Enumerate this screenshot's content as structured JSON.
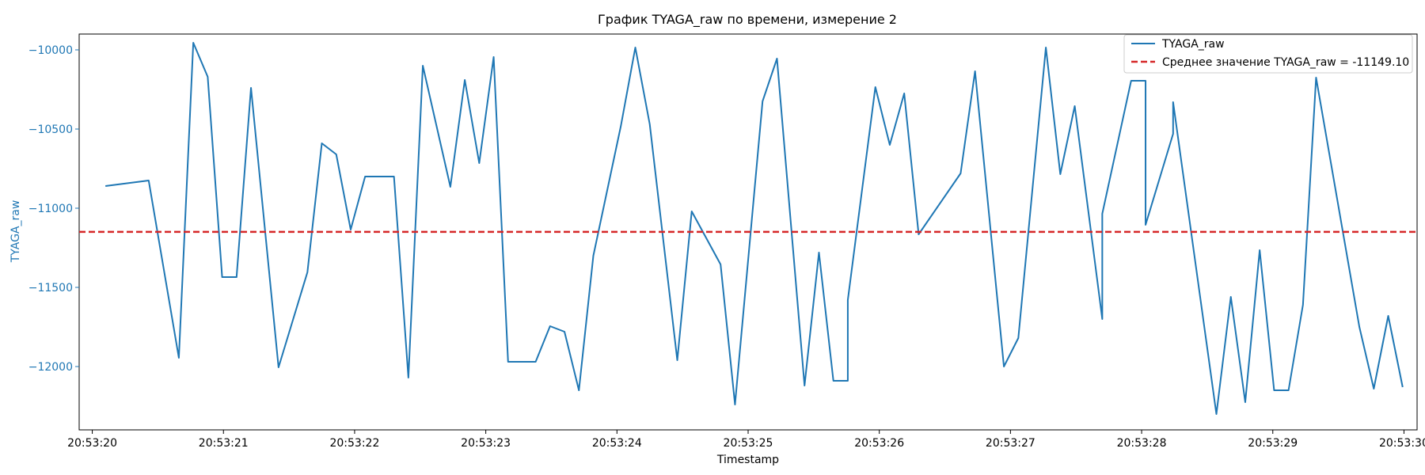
{
  "chart_data": {
    "type": "line",
    "title": "График TYAGA_raw по времени, измерение 2",
    "xlabel": "Timestamp",
    "ylabel": "TYAGA_raw",
    "xlim": [
      "20:53:19.90",
      "20:53:30.10"
    ],
    "ylim": [
      -12400,
      -9900
    ],
    "xticks": [
      "20:53:20",
      "20:53:21",
      "20:53:22",
      "20:53:23",
      "20:53:24",
      "20:53:25",
      "20:53:26",
      "20:53:27",
      "20:53:28",
      "20:53:29",
      "20:53:30"
    ],
    "yticks": [
      -10000,
      -10500,
      -11000,
      -11500,
      -12000
    ],
    "grid": false,
    "legend_position": "top-right",
    "colors": {
      "series": "#1f77b4",
      "mean_line": "#d62728",
      "ylabel": "#1f77b4"
    },
    "series": [
      {
        "name": "TYAGA_raw",
        "x": [
          "20:53:20.10",
          "20:53:20.43",
          "20:53:20.66",
          "20:53:20.77",
          "20:53:20.88",
          "20:53:20.99",
          "20:53:21.10",
          "20:53:21.21",
          "20:53:21.42",
          "20:53:21.64",
          "20:53:21.75",
          "20:53:21.86",
          "20:53:21.97",
          "20:53:22.08",
          "20:53:22.30",
          "20:53:22.41",
          "20:53:22.52",
          "20:53:22.73",
          "20:53:22.84",
          "20:53:22.95",
          "20:53:23.06",
          "20:53:23.17",
          "20:53:23.38",
          "20:53:23.49",
          "20:53:23.49",
          "20:53:23.60",
          "20:53:23.71",
          "20:53:23.82",
          "20:53:24.03",
          "20:53:24.14",
          "20:53:24.25",
          "20:53:24.46",
          "20:53:24.57",
          "20:53:24.79",
          "20:53:24.90",
          "20:53:25.11",
          "20:53:25.22",
          "20:53:25.43",
          "20:53:25.54",
          "20:53:25.65",
          "20:53:25.76",
          "20:53:25.76",
          "20:53:25.97",
          "20:53:26.08",
          "20:53:26.19",
          "20:53:26.30",
          "20:53:26.62",
          "20:53:26.73",
          "20:53:26.95",
          "20:53:27.06",
          "20:53:27.27",
          "20:53:27.38",
          "20:53:27.49",
          "20:53:27.70",
          "20:53:27.70",
          "20:53:27.92",
          "20:53:28.03",
          "20:53:28.03",
          "20:53:28.24",
          "20:53:28.24",
          "20:53:28.57",
          "20:53:28.68",
          "20:53:28.79",
          "20:53:28.90",
          "20:53:29.01",
          "20:53:29.12",
          "20:53:29.23",
          "20:53:29.33",
          "20:53:29.66",
          "20:53:29.77",
          "20:53:29.88",
          "20:53:29.99"
        ],
        "y": [
          -10860,
          -10825,
          -11945,
          -9955,
          -10170,
          -11435,
          -11435,
          -10240,
          -12005,
          -11405,
          -10590,
          -10660,
          -11135,
          -10800,
          -10800,
          -12070,
          -10100,
          -10865,
          -10190,
          -10715,
          -10045,
          -11970,
          -11970,
          -11745,
          -11745,
          -11780,
          -12150,
          -11300,
          -10480,
          -9985,
          -10470,
          -11960,
          -11020,
          -11355,
          -12240,
          -10325,
          -10055,
          -12120,
          -11280,
          -12090,
          -12090,
          -11580,
          -10235,
          -10600,
          -10275,
          -11165,
          -10780,
          -10135,
          -12000,
          -11820,
          -9985,
          -10785,
          -10355,
          -11700,
          -11035,
          -10195,
          -10195,
          -11105,
          -10530,
          -10330,
          -12300,
          -11560,
          -12225,
          -11265,
          -12150,
          -12150,
          -11610,
          -10175,
          -11750,
          -12140,
          -11680,
          -12130
        ]
      }
    ],
    "mean_line": {
      "name": "Среднее значение TYAGA_raw = -11149.10",
      "y": -11149.1
    }
  }
}
